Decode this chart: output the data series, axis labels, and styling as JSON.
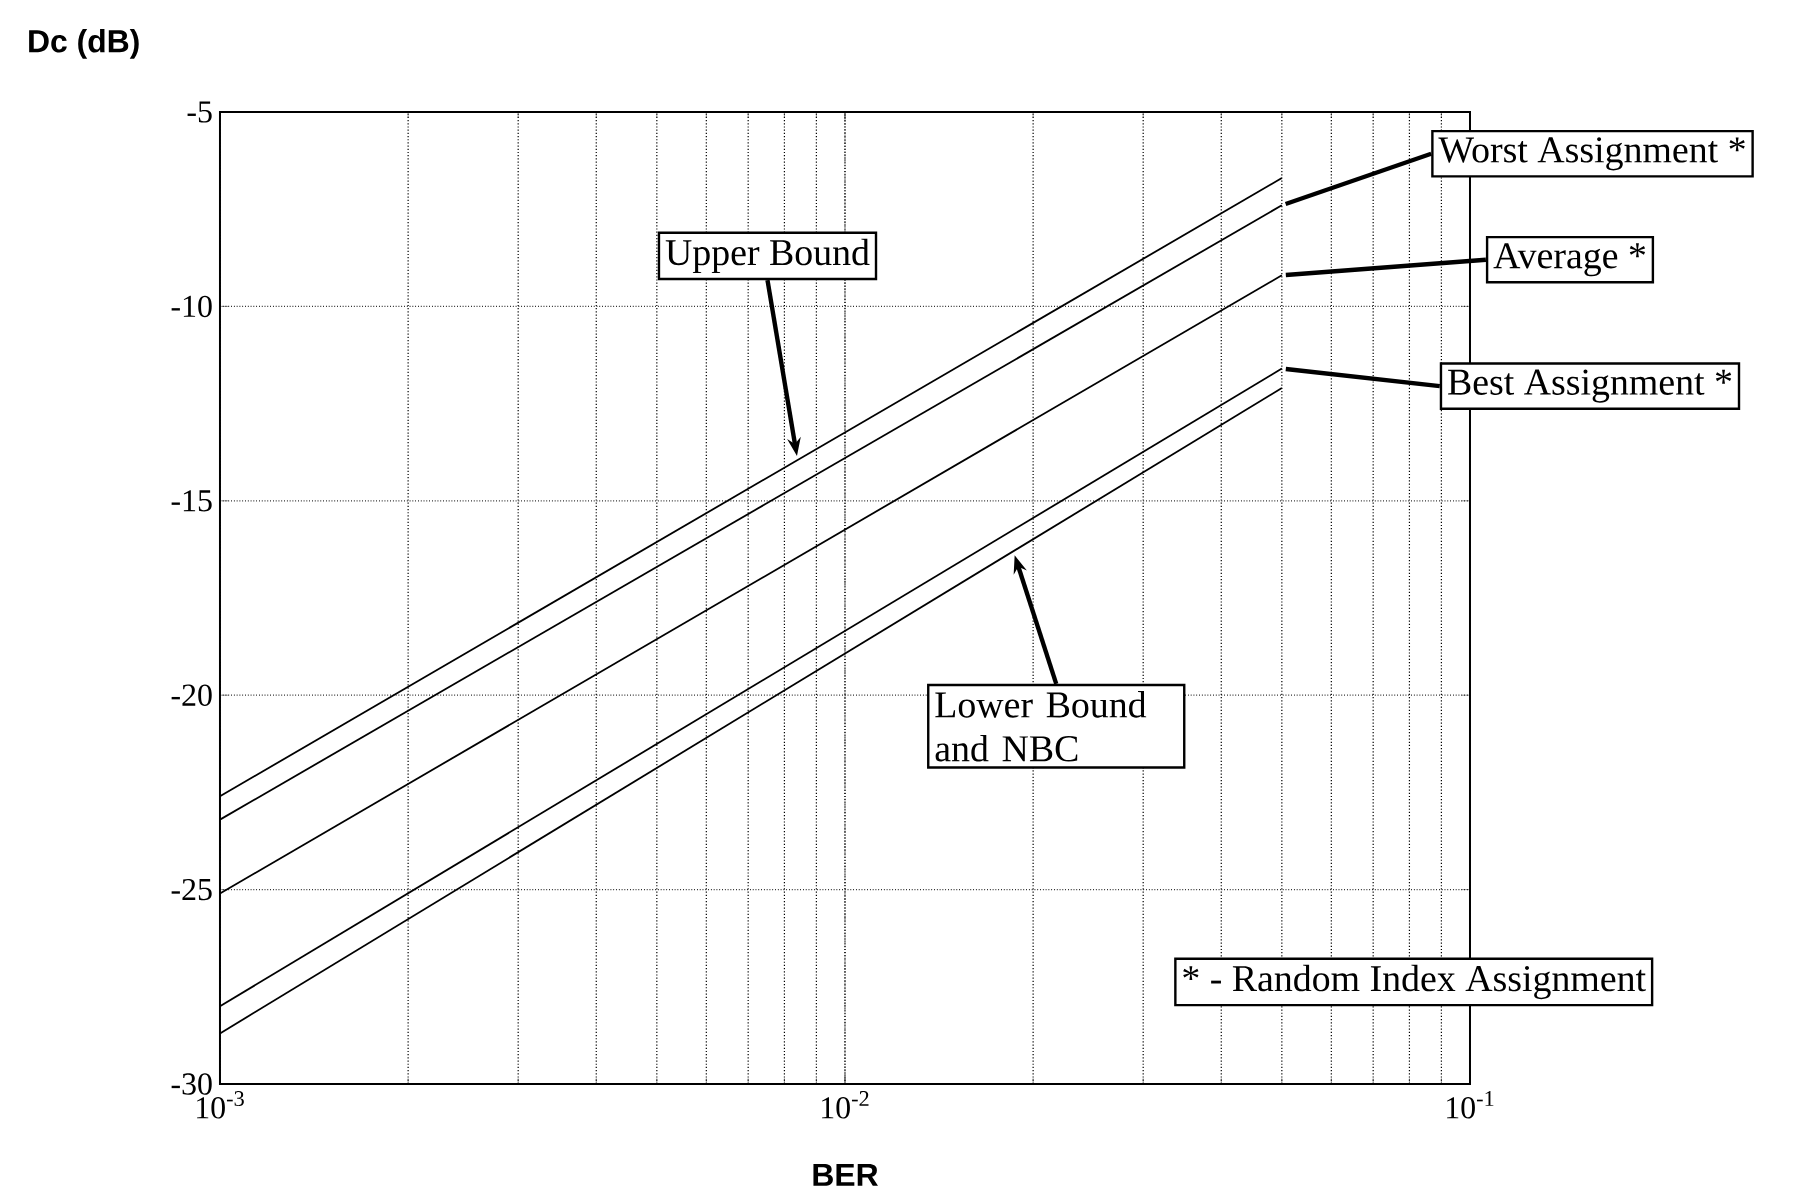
{
  "chart_data": {
    "type": "line",
    "xlabel": "BER",
    "ylabel": "Dc (dB)",
    "log": "x",
    "grid": true,
    "marker": "none",
    "line_style": "solid",
    "x": [
      0.001,
      0.05
    ],
    "xlim": [
      0.001,
      0.1
    ],
    "ylim": [
      -30,
      -5
    ],
    "xticks": [
      {
        "value": 0.001,
        "label": "10$^{-3}$"
      },
      {
        "value": 0.01,
        "label": "10$^{-2}$"
      },
      {
        "value": 0.1,
        "label": "10$^{-1}$"
      }
    ],
    "yticks": [
      -30,
      -25,
      -20,
      -15,
      -10,
      -5
    ],
    "series": [
      {
        "color": "#000000",
        "values": [
          -22.6,
          -6.7
        ]
      },
      {
        "color": "#000000",
        "values": [
          -23.2,
          -7.4
        ]
      },
      {
        "color": "#000000",
        "values": [
          -25.1,
          -9.2
        ]
      },
      {
        "color": "#000000",
        "values": [
          -28.0,
          -11.6
        ]
      },
      {
        "color": "#000000",
        "values": [
          -28.7,
          -12.1
        ]
      }
    ],
    "annotations": [
      {
        "text": "Upper Bound",
        "x": 0.0084,
        "y": -13.95
      },
      {
        "text": "Lower Bound and NBC",
        "x": 0.0186,
        "y": -16.3
      },
      {
        "text": "Worst Assignment *",
        "x": 0.05,
        "y": -7.4
      },
      {
        "text": "Average *",
        "x": 0.05,
        "y": -9.2
      },
      {
        "text": "Best Assignment *",
        "x": 0.05,
        "y": -11.6
      },
      "* - Random Index Assignment"
    ]
  }
}
